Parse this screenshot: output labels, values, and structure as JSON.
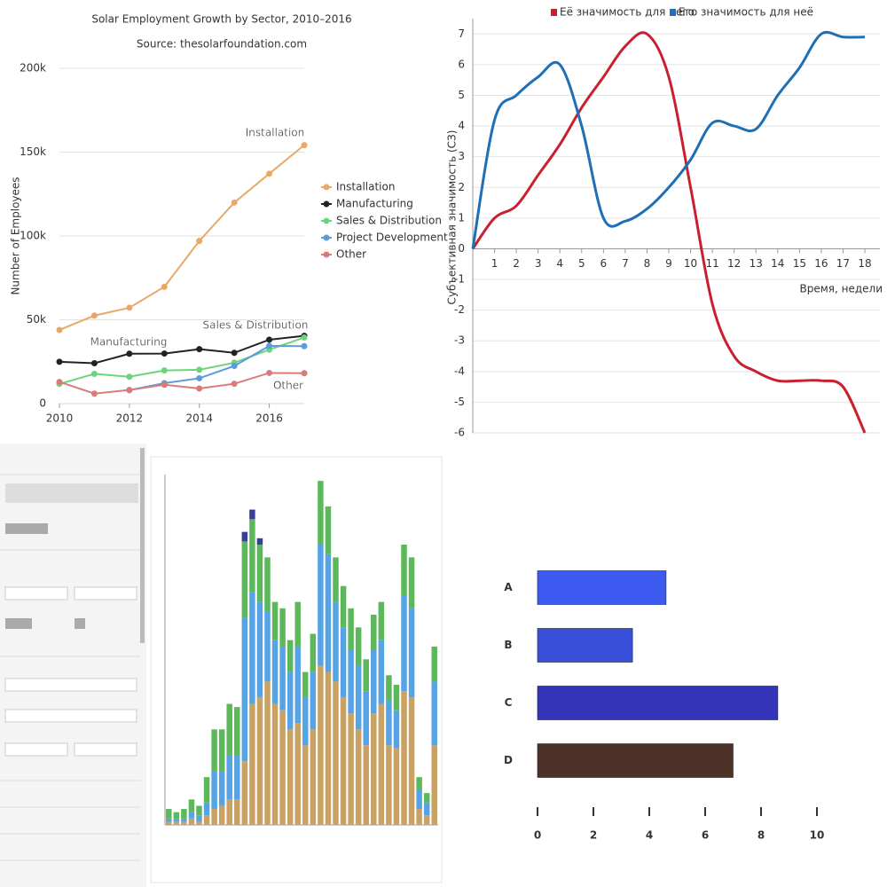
{
  "chart_data": [
    {
      "type": "line",
      "title": "Solar Employment Growth by Sector, 2010–2016",
      "subtitle": "Source: thesolarfoundation.com",
      "ylabel": "Number of Employees",
      "x": [
        2010,
        2011,
        2012,
        2013,
        2014,
        2015,
        2016,
        2017
      ],
      "xlim": [
        2010,
        2017
      ],
      "xticks": [
        2010,
        2012,
        2014,
        2016
      ],
      "ylim": [
        0,
        200000
      ],
      "yticks": [
        0,
        {
          "value": 50000,
          "label": "50k"
        },
        {
          "value": 100000,
          "label": "100k"
        },
        {
          "value": 150000,
          "label": "150k"
        },
        {
          "value": 200000,
          "label": "200k"
        }
      ],
      "grid": true,
      "markers": true,
      "legend": "right",
      "series": [
        {
          "name": "Installation",
          "color": "#e8a968",
          "end_label": true,
          "values": [
            43934,
            52503,
            57177,
            69658,
            97031,
            119931,
            137133,
            154175
          ]
        },
        {
          "name": "Manufacturing",
          "color": "#222222",
          "end_label": true,
          "values": [
            24916,
            24064,
            29742,
            29851,
            32490,
            30282,
            38121,
            40434
          ]
        },
        {
          "name": "Sales & Distribution",
          "color": "#6dd47e",
          "end_label": true,
          "values": [
            11744,
            17722,
            16005,
            19771,
            20185,
            24377,
            32147,
            39387
          ]
        },
        {
          "name": "Project Development",
          "color": "#5b9bd8",
          "end_label": false,
          "values": [
            null,
            null,
            7988,
            12169,
            15112,
            22452,
            34400,
            34227
          ]
        },
        {
          "name": "Other",
          "color": "#d97b7b",
          "end_label": true,
          "values": [
            12908,
            5948,
            8105,
            11248,
            8989,
            11816,
            18274,
            18111
          ]
        }
      ]
    },
    {
      "type": "line",
      "smooth": true,
      "ylabel": "Субъективная значимость (СЗ)",
      "xlabel": "Время, недели",
      "x": [
        0,
        1,
        2,
        3,
        4,
        5,
        6,
        7,
        8,
        9,
        10,
        11,
        12,
        13,
        14,
        15,
        16,
        17,
        18
      ],
      "xlim": [
        0,
        18
      ],
      "xticks": [
        1,
        2,
        3,
        4,
        5,
        6,
        7,
        8,
        9,
        10,
        11,
        12,
        13,
        14,
        15,
        16,
        17,
        18
      ],
      "ylim": [
        -6,
        7.5
      ],
      "yticks": [
        -6,
        -5,
        -4,
        -3,
        -2,
        -1,
        0,
        1,
        2,
        3,
        4,
        5,
        6,
        7
      ],
      "grid": true,
      "markers": false,
      "legend": "top",
      "series": [
        {
          "name": "Её значимость для него",
          "color": "#c8202f",
          "values": [
            0,
            1.0,
            1.4,
            2.4,
            3.4,
            4.6,
            5.6,
            6.6,
            7.0,
            5.6,
            2.0,
            -1.8,
            -3.5,
            -4.0,
            -4.3,
            -4.3,
            -4.3,
            -4.5,
            -6
          ]
        },
        {
          "name": "Его значимость для неё",
          "color": "#1f6fb5",
          "values": [
            0,
            4.2,
            5.0,
            5.6,
            6.0,
            4.0,
            1.0,
            0.9,
            1.3,
            2.0,
            2.9,
            4.1,
            4.0,
            3.9,
            5.0,
            5.9,
            7.0,
            6.9,
            6.9
          ]
        }
      ]
    },
    {
      "type": "bar",
      "stacked": true,
      "ylim": [
        0,
        110
      ],
      "series": [
        {
          "color": "#c9a263",
          "values": [
            1,
            1,
            1,
            2,
            1,
            3,
            5,
            6,
            8,
            8,
            20,
            38,
            40,
            45,
            38,
            36,
            30,
            32,
            25,
            30,
            50,
            48,
            45,
            40,
            35,
            30,
            25,
            35,
            38,
            25,
            24,
            42,
            40,
            5,
            3,
            25
          ]
        },
        {
          "color": "#56a4e6",
          "values": [
            1,
            1,
            1,
            2,
            2,
            4,
            12,
            11,
            14,
            14,
            45,
            35,
            30,
            22,
            20,
            20,
            18,
            24,
            15,
            18,
            38,
            37,
            25,
            22,
            20,
            20,
            17,
            20,
            20,
            14,
            12,
            30,
            28,
            6,
            4,
            20
          ]
        },
        {
          "color": "#5db85c",
          "values": [
            3,
            2,
            3,
            4,
            3,
            8,
            13,
            13,
            16,
            15,
            24,
            23,
            18,
            17,
            12,
            12,
            10,
            14,
            8,
            12,
            20,
            15,
            14,
            13,
            13,
            12,
            10,
            11,
            12,
            8,
            8,
            16,
            16,
            4,
            3,
            11
          ]
        },
        {
          "color": "#3b3f9a",
          "values": [
            0,
            0,
            0,
            0,
            0,
            0,
            0,
            0,
            0,
            0,
            3,
            3,
            2,
            0,
            0,
            0,
            0,
            0,
            0,
            0,
            0,
            0,
            0,
            0,
            0,
            0,
            0,
            0,
            0,
            0,
            0,
            0,
            0,
            0,
            0,
            0
          ]
        }
      ]
    },
    {
      "type": "bar",
      "orientation": "horizontal",
      "categories": [
        "A",
        "B",
        "C",
        "D"
      ],
      "values": [
        4.6,
        3.4,
        8.6,
        7.0
      ],
      "colors": [
        "#3d5af1",
        "#3a4fd9",
        "#3434b8",
        "#4e3228"
      ],
      "xlim": [
        0,
        10
      ],
      "xticks": [
        0,
        2,
        4,
        6,
        8,
        10
      ]
    }
  ]
}
